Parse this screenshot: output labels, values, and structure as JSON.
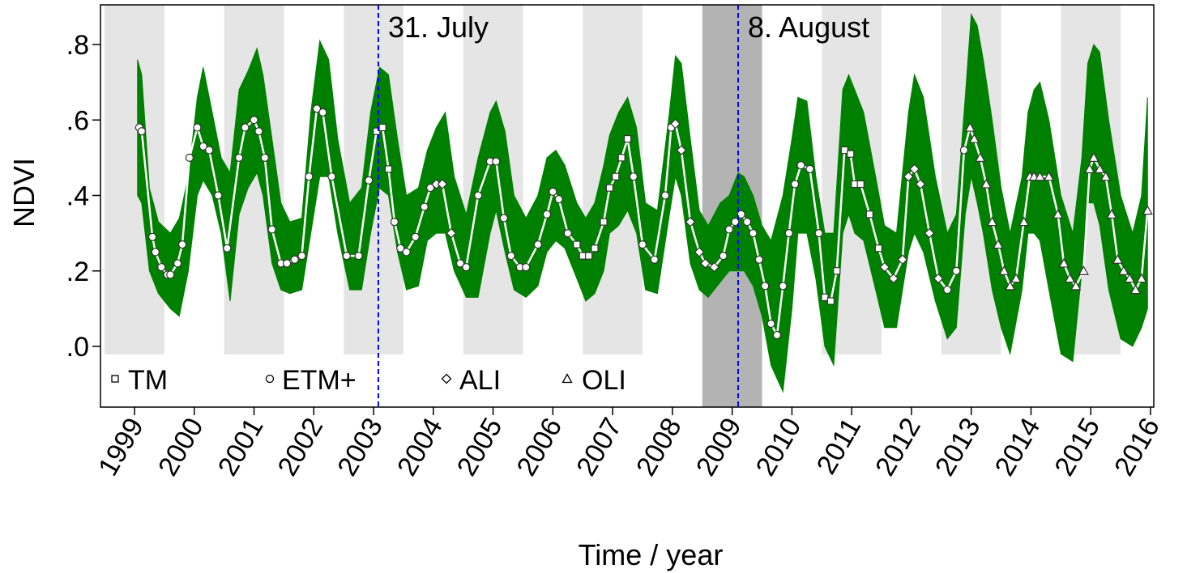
{
  "chart_data": {
    "type": "line",
    "title": "",
    "xlabel": "Time / year",
    "ylabel": "NDVI",
    "xlim": [
      1998.5,
      2016.3
    ],
    "ylim": [
      -0.16,
      0.9
    ],
    "x_ticks": [
      1999,
      2000,
      2001,
      2002,
      2003,
      2004,
      2005,
      2006,
      2007,
      2008,
      2009,
      2010,
      2011,
      2012,
      2013,
      2014,
      2015,
      2016
    ],
    "y_ticks": [
      {
        "value": 0.8,
        "label": ".8"
      },
      {
        "value": 0.6,
        "label": ".6"
      },
      {
        "value": 0.4,
        "label": ".4"
      },
      {
        "value": 0.2,
        "label": ".2"
      },
      {
        "value": 0.0,
        "label": ".0"
      }
    ],
    "colors": {
      "band": "#008000",
      "mean_line": "#ffffff",
      "shade_light": "#e5e5e5",
      "shade_dark": "#b3b3b3",
      "event_line": "#0000ff"
    },
    "shaded_periods": [
      {
        "start": 1998.5,
        "end": 1999.5
      },
      {
        "start": 2000.5,
        "end": 2001.5
      },
      {
        "start": 2002.5,
        "end": 2003.5
      },
      {
        "start": 2004.5,
        "end": 2005.5
      },
      {
        "start": 2006.5,
        "end": 2007.5
      },
      {
        "start": 2010.5,
        "end": 2011.5
      },
      {
        "start": 2012.5,
        "end": 2013.5
      },
      {
        "start": 2014.5,
        "end": 2015.5
      }
    ],
    "highlight_period": {
      "start": 2008.5,
      "end": 2009.5
    },
    "events": [
      {
        "x": 2003.08,
        "label": "31. July"
      },
      {
        "x": 2009.1,
        "label": "8. August"
      }
    ],
    "legend": {
      "position": "bottom-left",
      "entries": [
        {
          "name": "TM",
          "marker": "square"
        },
        {
          "name": "ETM+",
          "marker": "circle"
        },
        {
          "name": "ALI",
          "marker": "diamond"
        },
        {
          "name": "OLI",
          "marker": "triangle"
        }
      ]
    },
    "series": [
      {
        "name": "mean",
        "x": [
          1999.08,
          1999.12,
          1999.3,
          1999.35,
          1999.45,
          1999.55,
          1999.6,
          1999.72,
          1999.8,
          1999.92,
          2000.05,
          2000.15,
          2000.25,
          2000.4,
          2000.55,
          2000.75,
          2000.85,
          2001.0,
          2001.08,
          2001.18,
          2001.3,
          2001.45,
          2001.55,
          2001.68,
          2001.8,
          2001.92,
          2002.05,
          2002.15,
          2002.3,
          2002.55,
          2002.75,
          2002.92,
          2003.05,
          2003.15,
          2003.25,
          2003.35,
          2003.45,
          2003.55,
          2003.7,
          2003.85,
          2003.95,
          2004.05,
          2004.15,
          2004.3,
          2004.45,
          2004.55,
          2004.75,
          2004.95,
          2005.05,
          2005.18,
          2005.3,
          2005.45,
          2005.55,
          2005.75,
          2005.9,
          2006.0,
          2006.1,
          2006.25,
          2006.4,
          2006.5,
          2006.6,
          2006.7,
          2006.85,
          2006.95,
          2007.05,
          2007.15,
          2007.25,
          2007.35,
          2007.5,
          2007.7,
          2007.88,
          2007.98,
          2008.05,
          2008.15,
          2008.3,
          2008.45,
          2008.55,
          2008.7,
          2008.85,
          2008.95,
          2009.05,
          2009.15,
          2009.25,
          2009.35,
          2009.45,
          2009.55,
          2009.65,
          2009.75,
          2009.85,
          2009.95,
          2010.05,
          2010.15,
          2010.3,
          2010.45,
          2010.55,
          2010.65,
          2010.75,
          2010.88,
          2010.98,
          2011.05,
          2011.15,
          2011.3,
          2011.45,
          2011.55,
          2011.7,
          2011.85,
          2011.95,
          2012.05,
          2012.15,
          2012.3,
          2012.45,
          2012.6,
          2012.75,
          2012.88,
          2012.98,
          2013.05,
          2013.15,
          2013.25,
          2013.35,
          2013.45,
          2013.55,
          2013.65,
          2013.75,
          2013.88,
          2013.98,
          2014.05,
          2014.15,
          2014.3,
          2014.45,
          2014.55,
          2014.65,
          2014.75,
          2014.88,
          2014.98,
          2015.05,
          2015.15,
          2015.25,
          2015.35,
          2015.45,
          2015.55,
          2015.65,
          2015.75,
          2015.85,
          2015.95
        ],
        "values": [
          0.58,
          0.57,
          0.29,
          0.25,
          0.21,
          0.19,
          0.19,
          0.22,
          0.27,
          0.5,
          0.58,
          0.53,
          0.52,
          0.4,
          0.26,
          0.5,
          0.58,
          0.6,
          0.57,
          0.5,
          0.31,
          0.22,
          0.22,
          0.23,
          0.24,
          0.45,
          0.63,
          0.62,
          0.45,
          0.24,
          0.24,
          0.44,
          0.57,
          0.58,
          0.47,
          0.33,
          0.26,
          0.25,
          0.29,
          0.37,
          0.42,
          0.43,
          0.43,
          0.3,
          0.22,
          0.21,
          0.4,
          0.49,
          0.49,
          0.34,
          0.24,
          0.21,
          0.21,
          0.27,
          0.35,
          0.41,
          0.39,
          0.3,
          0.27,
          0.24,
          0.24,
          0.26,
          0.33,
          0.42,
          0.45,
          0.5,
          0.55,
          0.45,
          0.27,
          0.23,
          0.4,
          0.58,
          0.59,
          0.52,
          0.33,
          0.25,
          0.22,
          0.21,
          0.24,
          0.31,
          0.33,
          0.35,
          0.33,
          0.3,
          0.23,
          0.16,
          0.06,
          0.03,
          0.16,
          0.3,
          0.43,
          0.48,
          0.47,
          0.3,
          0.13,
          0.12,
          0.2,
          0.52,
          0.51,
          0.43,
          0.43,
          0.35,
          0.26,
          0.21,
          0.18,
          0.23,
          0.45,
          0.47,
          0.43,
          0.3,
          0.18,
          0.15,
          0.2,
          0.52,
          0.58,
          0.55,
          0.5,
          0.43,
          0.33,
          0.27,
          0.2,
          0.16,
          0.18,
          0.33,
          0.45,
          0.45,
          0.45,
          0.45,
          0.35,
          0.22,
          0.18,
          0.16,
          0.2,
          0.47,
          0.5,
          0.47,
          0.45,
          0.35,
          0.23,
          0.2,
          0.18,
          0.15,
          0.18,
          0.36
        ]
      },
      {
        "name": "upper",
        "x": [
          1999.05,
          1999.12,
          1999.25,
          1999.4,
          1999.6,
          1999.75,
          1999.9,
          2000.05,
          2000.15,
          2000.3,
          2000.45,
          2000.6,
          2000.75,
          2000.9,
          2001.05,
          2001.15,
          2001.3,
          2001.45,
          2001.6,
          2001.8,
          2001.95,
          2002.1,
          2002.25,
          2002.4,
          2002.6,
          2002.8,
          2002.95,
          2003.1,
          2003.25,
          2003.4,
          2003.55,
          2003.75,
          2003.9,
          2004.05,
          2004.2,
          2004.35,
          2004.55,
          2004.75,
          2004.95,
          2005.05,
          2005.2,
          2005.35,
          2005.55,
          2005.75,
          2005.9,
          2006.05,
          2006.2,
          2006.4,
          2006.55,
          2006.7,
          2006.85,
          2006.95,
          2007.1,
          2007.25,
          2007.4,
          2007.55,
          2007.75,
          2007.95,
          2008.05,
          2008.15,
          2008.3,
          2008.45,
          2008.6,
          2008.8,
          2008.95,
          2009.1,
          2009.2,
          2009.35,
          2009.5,
          2009.65,
          2009.85,
          2010.0,
          2010.1,
          2010.25,
          2010.4,
          2010.55,
          2010.7,
          2010.85,
          2010.95,
          2011.05,
          2011.2,
          2011.4,
          2011.55,
          2011.75,
          2011.95,
          2012.05,
          2012.2,
          2012.4,
          2012.6,
          2012.75,
          2012.9,
          2013.0,
          2013.1,
          2013.2,
          2013.35,
          2013.5,
          2013.65,
          2013.85,
          2013.95,
          2014.05,
          2014.15,
          2014.3,
          2014.5,
          2014.7,
          2014.85,
          2014.95,
          2015.05,
          2015.15,
          2015.3,
          2015.5,
          2015.7,
          2015.85,
          2015.95
        ],
        "values": [
          0.76,
          0.72,
          0.42,
          0.33,
          0.3,
          0.34,
          0.45,
          0.66,
          0.74,
          0.62,
          0.5,
          0.46,
          0.68,
          0.73,
          0.79,
          0.72,
          0.55,
          0.38,
          0.33,
          0.34,
          0.62,
          0.81,
          0.76,
          0.55,
          0.38,
          0.42,
          0.62,
          0.74,
          0.72,
          0.55,
          0.4,
          0.42,
          0.52,
          0.58,
          0.62,
          0.45,
          0.35,
          0.5,
          0.62,
          0.65,
          0.57,
          0.4,
          0.34,
          0.4,
          0.5,
          0.52,
          0.48,
          0.38,
          0.34,
          0.38,
          0.48,
          0.56,
          0.62,
          0.66,
          0.58,
          0.38,
          0.36,
          0.62,
          0.77,
          0.75,
          0.55,
          0.36,
          0.32,
          0.38,
          0.4,
          0.46,
          0.45,
          0.4,
          0.32,
          0.28,
          0.4,
          0.55,
          0.66,
          0.65,
          0.45,
          0.3,
          0.3,
          0.68,
          0.72,
          0.68,
          0.62,
          0.45,
          0.32,
          0.3,
          0.62,
          0.72,
          0.66,
          0.45,
          0.3,
          0.35,
          0.66,
          0.88,
          0.85,
          0.76,
          0.6,
          0.42,
          0.3,
          0.45,
          0.62,
          0.68,
          0.7,
          0.6,
          0.4,
          0.3,
          0.5,
          0.75,
          0.8,
          0.78,
          0.6,
          0.4,
          0.3,
          0.4,
          0.66
        ]
      },
      {
        "name": "lower",
        "x": [
          1999.05,
          1999.12,
          1999.25,
          1999.4,
          1999.6,
          1999.75,
          1999.9,
          2000.05,
          2000.15,
          2000.3,
          2000.45,
          2000.6,
          2000.75,
          2000.9,
          2001.05,
          2001.15,
          2001.3,
          2001.45,
          2001.6,
          2001.8,
          2001.95,
          2002.1,
          2002.25,
          2002.4,
          2002.6,
          2002.8,
          2002.95,
          2003.1,
          2003.25,
          2003.4,
          2003.55,
          2003.75,
          2003.9,
          2004.05,
          2004.2,
          2004.35,
          2004.55,
          2004.75,
          2004.95,
          2005.05,
          2005.2,
          2005.35,
          2005.55,
          2005.75,
          2005.9,
          2006.05,
          2006.2,
          2006.4,
          2006.55,
          2006.7,
          2006.85,
          2006.95,
          2007.1,
          2007.25,
          2007.4,
          2007.55,
          2007.75,
          2007.95,
          2008.05,
          2008.15,
          2008.3,
          2008.45,
          2008.6,
          2008.8,
          2008.95,
          2009.1,
          2009.2,
          2009.35,
          2009.5,
          2009.65,
          2009.85,
          2010.0,
          2010.1,
          2010.25,
          2010.4,
          2010.55,
          2010.7,
          2010.85,
          2010.95,
          2011.05,
          2011.2,
          2011.4,
          2011.55,
          2011.75,
          2011.95,
          2012.05,
          2012.2,
          2012.4,
          2012.6,
          2012.75,
          2012.9,
          2013.0,
          2013.1,
          2013.2,
          2013.35,
          2013.5,
          2013.65,
          2013.85,
          2013.95,
          2014.05,
          2014.15,
          2014.3,
          2014.5,
          2014.7,
          2014.85,
          2014.95,
          2015.05,
          2015.15,
          2015.3,
          2015.5,
          2015.7,
          2015.85,
          2015.95
        ],
        "values": [
          0.4,
          0.38,
          0.2,
          0.14,
          0.1,
          0.08,
          0.2,
          0.4,
          0.44,
          0.4,
          0.3,
          0.12,
          0.35,
          0.42,
          0.46,
          0.4,
          0.22,
          0.15,
          0.14,
          0.15,
          0.3,
          0.45,
          0.45,
          0.3,
          0.15,
          0.15,
          0.3,
          0.42,
          0.4,
          0.25,
          0.15,
          0.16,
          0.28,
          0.3,
          0.3,
          0.2,
          0.13,
          0.13,
          0.3,
          0.36,
          0.25,
          0.15,
          0.13,
          0.16,
          0.25,
          0.28,
          0.26,
          0.18,
          0.12,
          0.14,
          0.2,
          0.3,
          0.32,
          0.36,
          0.3,
          0.15,
          0.14,
          0.35,
          0.45,
          0.4,
          0.22,
          0.15,
          0.13,
          0.17,
          0.2,
          0.2,
          0.2,
          0.16,
          0.08,
          -0.05,
          -0.12,
          0.1,
          0.3,
          0.3,
          0.18,
          0.0,
          -0.05,
          0.3,
          0.35,
          0.3,
          0.28,
          0.15,
          0.05,
          0.05,
          0.25,
          0.3,
          0.25,
          0.12,
          0.02,
          0.05,
          0.35,
          0.45,
          0.38,
          0.3,
          0.15,
          0.05,
          -0.02,
          0.15,
          0.3,
          0.3,
          0.28,
          0.15,
          -0.02,
          -0.04,
          0.2,
          0.38,
          0.38,
          0.32,
          0.15,
          0.02,
          0.0,
          0.05,
          0.1
        ]
      }
    ]
  }
}
